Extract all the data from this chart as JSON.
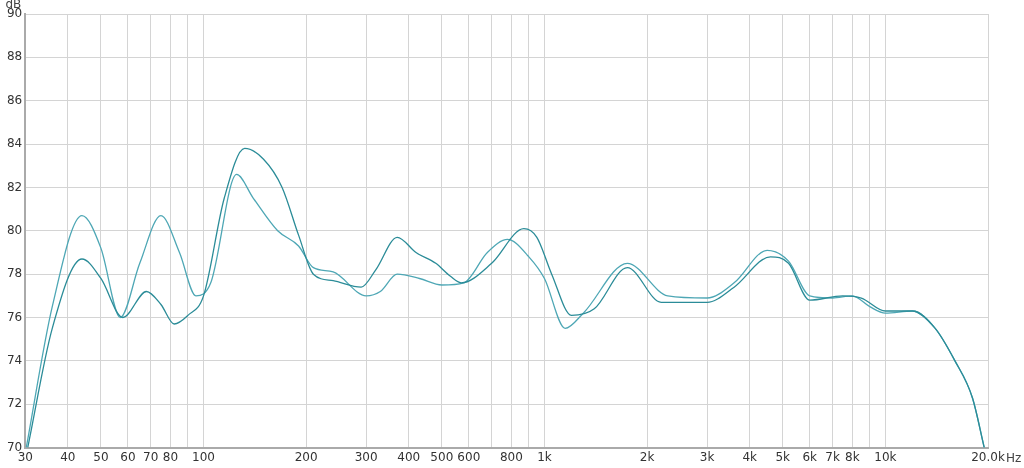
{
  "chart_data": {
    "type": "line",
    "xlabel": "Hz",
    "ylabel": "dB",
    "xlim": [
      30,
      20000
    ],
    "ylim": [
      70,
      90
    ],
    "xticks": [
      30,
      40,
      50,
      60,
      70,
      80,
      {
        "value": 90,
        "label": null
      },
      100,
      200,
      300,
      400,
      500,
      600,
      {
        "value": 700,
        "label": null
      },
      800,
      {
        "value": 900,
        "label": null
      },
      {
        "value": 1000,
        "label": "1k"
      },
      {
        "value": 2000,
        "label": "2k"
      },
      {
        "value": 3000,
        "label": "3k"
      },
      {
        "value": 4000,
        "label": "4k"
      },
      {
        "value": 5000,
        "label": "5k"
      },
      {
        "value": 6000,
        "label": "6k"
      },
      {
        "value": 7000,
        "label": "7k"
      },
      {
        "value": 8000,
        "label": "8k"
      },
      {
        "value": 9000,
        "label": null
      },
      {
        "value": 10000,
        "label": "10k"
      },
      {
        "value": 20000,
        "label": "20.0k"
      }
    ],
    "yticks": [
      70,
      72,
      74,
      76,
      78,
      80,
      82,
      84,
      86,
      88,
      90
    ],
    "log": "x",
    "grid": true,
    "legend": false,
    "marker": "none",
    "line_style": "solid",
    "series": [
      {
        "color": "#2b8c98",
        "x": [
          30.5,
          36,
          44,
          50,
          58,
          68,
          75,
          82,
          90,
          100,
          115,
          132,
          150,
          170,
          190,
          210,
          240,
          290,
          320,
          370,
          420,
          480,
          530,
          570,
          700,
          870,
          950,
          1050,
          1200,
          1400,
          1750,
          2200,
          3000,
          3600,
          4600,
          5200,
          6000,
          7500,
          8500,
          10000,
          12000,
          14000,
          16000,
          18000,
          19500
        ],
        "values": [
          70,
          75.5,
          78.7,
          77.8,
          76,
          77.2,
          76.6,
          75.7,
          76.1,
          77,
          81.5,
          83.8,
          83.3,
          82,
          79.8,
          78,
          77.7,
          77.4,
          78.2,
          79.7,
          79,
          78.5,
          77.9,
          77.6,
          78.5,
          80.1,
          79.7,
          78,
          76.1,
          76.4,
          78.3,
          76.7,
          76.7,
          77.4,
          78.8,
          78.5,
          76.8,
          77,
          76.9,
          76.3,
          76.3,
          75.5,
          74,
          72.3,
          70
        ]
      },
      {
        "color": "#4ea7b5",
        "x": [
          30.2,
          36,
          44,
          50,
          57,
          65,
          75,
          85,
          95,
          105,
          125,
          140,
          165,
          190,
          210,
          240,
          300,
          330,
          370,
          430,
          500,
          580,
          680,
          780,
          900,
          1000,
          1150,
          1300,
          1750,
          2300,
          3000,
          3600,
          4500,
          5200,
          6000,
          7000,
          8000,
          9000,
          10000,
          12000,
          14000,
          16000,
          18000,
          19500
        ],
        "values": [
          70,
          76.5,
          80.7,
          79.2,
          76,
          78.5,
          80.7,
          79,
          77,
          77.6,
          82.6,
          81.5,
          80,
          79.3,
          78.3,
          78.1,
          77,
          77.2,
          78,
          77.8,
          77.5,
          77.6,
          79,
          79.6,
          78.8,
          77.8,
          75.5,
          76.2,
          78.5,
          77,
          76.9,
          77.6,
          79.1,
          78.6,
          77,
          76.9,
          77,
          76.5,
          76.2,
          76.3,
          75.5,
          74,
          72.3,
          70
        ]
      }
    ]
  }
}
